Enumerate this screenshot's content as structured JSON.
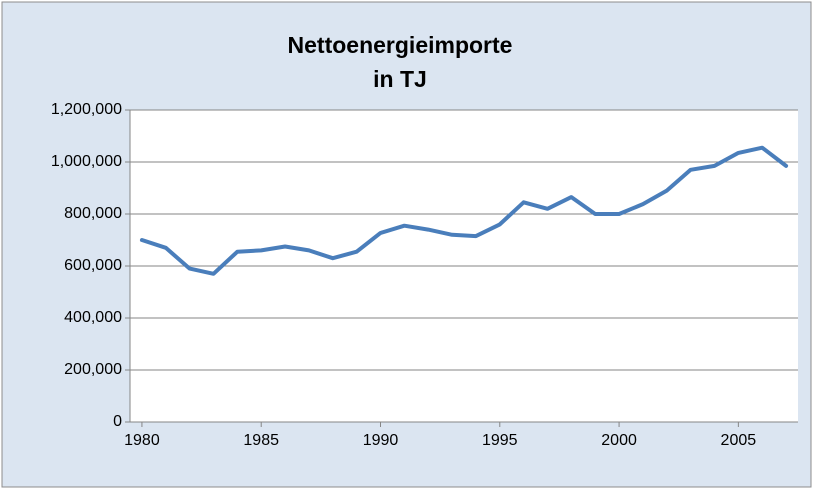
{
  "chart_data": {
    "type": "line",
    "title": "Nettoenergieimporte",
    "subtitle": "in TJ",
    "x": [
      1980,
      1981,
      1982,
      1983,
      1984,
      1985,
      1986,
      1987,
      1988,
      1989,
      1990,
      1991,
      1992,
      1993,
      1994,
      1995,
      1996,
      1997,
      1998,
      1999,
      2000,
      2001,
      2002,
      2003,
      2004,
      2005,
      2006,
      2007
    ],
    "series": [
      {
        "name": null,
        "color": "#4a7ebb",
        "values": [
          700000,
          670000,
          590000,
          570000,
          655000,
          660000,
          675000,
          660000,
          630000,
          655000,
          727000,
          755000,
          740000,
          720000,
          715000,
          760000,
          845000,
          820000,
          865000,
          800000,
          800000,
          838000,
          890000,
          970000,
          985000,
          1035000,
          1055000,
          985000
        ]
      }
    ],
    "xlim": [
      1979.5,
      2007.5
    ],
    "xticks": [
      1980,
      1985,
      1990,
      1995,
      2000,
      2005
    ],
    "ylim": [
      0,
      1200000
    ],
    "yticks": [
      {
        "value": 0,
        "label": "0"
      },
      {
        "value": 200000,
        "label": "200,000"
      },
      {
        "value": 400000,
        "label": "400,000"
      },
      {
        "value": 600000,
        "label": "600,000"
      },
      {
        "value": 800000,
        "label": "800,000"
      },
      {
        "value": 1000000,
        "label": "1,000,000"
      },
      {
        "value": 1200000,
        "label": "1,200,000"
      }
    ],
    "grid": true
  }
}
